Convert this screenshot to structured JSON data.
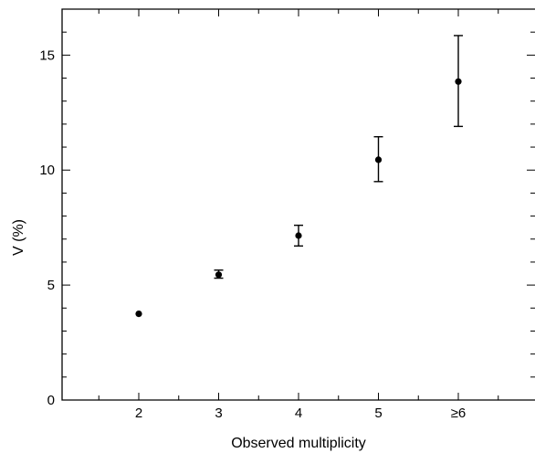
{
  "chart_data": {
    "type": "scatter",
    "title": "",
    "xlabel": "Observed multiplicity",
    "ylabel": "V (%)",
    "x_categories": [
      "2",
      "3",
      "4",
      "5",
      "≥6"
    ],
    "ylim": [
      0,
      17
    ],
    "yticks": [
      0,
      5,
      10,
      15
    ],
    "grid": false,
    "legend": "none",
    "points": [
      {
        "x": "2",
        "y": 3.75,
        "err_low": 3.75,
        "err_high": 3.75
      },
      {
        "x": "3",
        "y": 5.45,
        "err_low": 5.3,
        "err_high": 5.65
      },
      {
        "x": "4",
        "y": 7.15,
        "err_low": 6.7,
        "err_high": 7.6
      },
      {
        "x": "5",
        "y": 10.45,
        "err_low": 9.5,
        "err_high": 11.45
      },
      {
        "x": "≥6",
        "y": 13.85,
        "err_low": 11.9,
        "err_high": 15.85
      }
    ]
  }
}
